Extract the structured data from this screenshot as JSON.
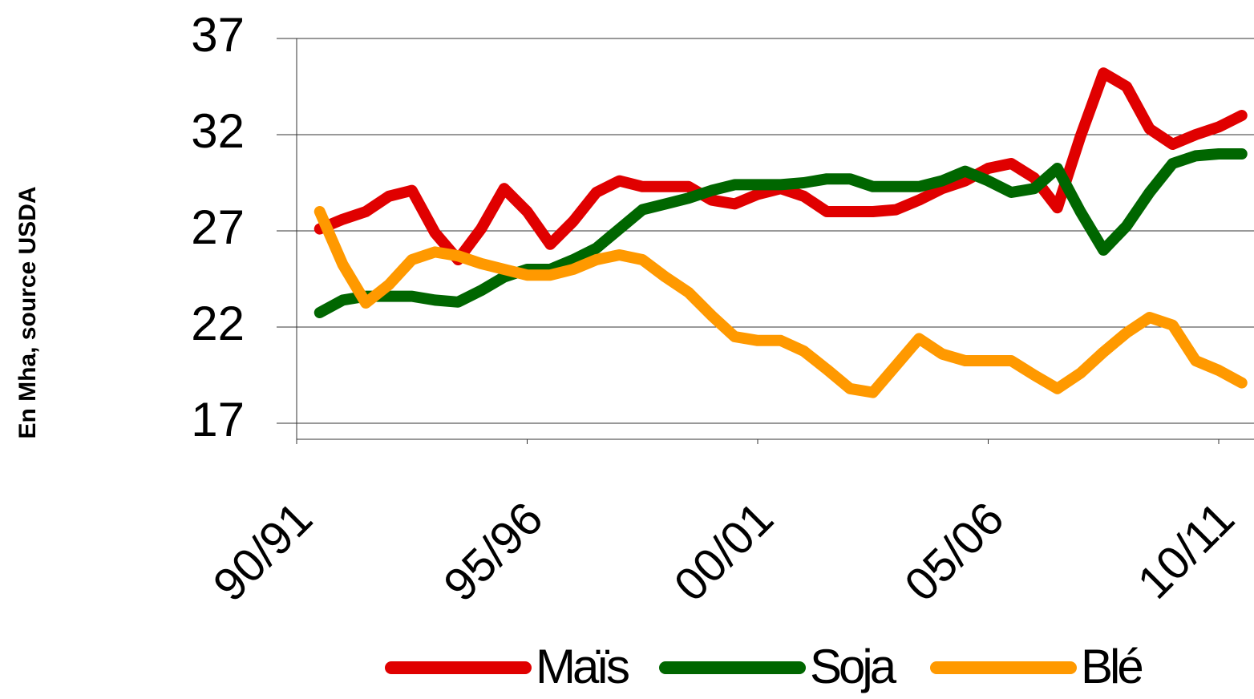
{
  "chart_data": {
    "type": "line",
    "y_label": "En Mha, source USDA",
    "categories": [
      "90/91",
      null,
      null,
      null,
      null,
      null,
      null,
      null,
      null,
      null,
      "95/96",
      null,
      null,
      null,
      null,
      null,
      null,
      null,
      null,
      null,
      "00/01",
      null,
      null,
      null,
      null,
      null,
      null,
      null,
      null,
      null,
      "05/06",
      null,
      null,
      null,
      null,
      null,
      null,
      null,
      null,
      null,
      "10/11",
      null
    ],
    "series": [
      {
        "name": "Maïs",
        "color": "#e00000",
        "values": [
          null,
          27.1,
          27.6,
          28.0,
          28.8,
          29.1,
          26.9,
          25.5,
          27.1,
          29.2,
          28.0,
          26.3,
          27.5,
          29.0,
          29.6,
          29.3,
          29.3,
          29.3,
          28.6,
          28.4,
          28.9,
          29.2,
          28.8,
          28.0,
          28.0,
          28.0,
          28.1,
          28.6,
          29.2,
          29.6,
          30.25,
          30.5,
          29.75,
          28.2,
          31.9,
          35.2,
          34.5,
          32.3,
          31.5,
          32.0,
          32.4,
          33.0
        ]
      },
      {
        "name": "Soja",
        "color": "#006600",
        "values": [
          null,
          22.75,
          23.4,
          23.6,
          23.6,
          23.6,
          23.4,
          23.3,
          23.9,
          24.6,
          25.0,
          25.0,
          25.5,
          26.1,
          27.1,
          28.1,
          28.4,
          28.7,
          29.1,
          29.4,
          29.4,
          29.4,
          29.5,
          29.7,
          29.7,
          29.3,
          29.3,
          29.3,
          29.6,
          30.1,
          29.6,
          29.0,
          29.2,
          30.25,
          28.0,
          26.0,
          27.25,
          29.0,
          30.5,
          30.9,
          31.0,
          31.0
        ]
      },
      {
        "name": "Blé",
        "color": "#ff9900",
        "values": [
          null,
          28.0,
          25.25,
          23.25,
          24.2,
          25.5,
          25.9,
          25.7,
          25.3,
          25.0,
          24.7,
          24.7,
          25.0,
          25.5,
          25.75,
          25.5,
          24.6,
          23.8,
          22.6,
          21.5,
          21.3,
          21.3,
          20.75,
          19.8,
          18.8,
          18.6,
          20.0,
          21.4,
          20.6,
          20.25,
          20.25,
          20.25,
          19.5,
          18.8,
          19.6,
          20.7,
          21.7,
          22.5,
          22.1,
          20.25,
          19.75,
          19.1
        ]
      }
    ],
    "ylim": [
      17,
      37
    ],
    "yticks": [
      17,
      22,
      27,
      32,
      37
    ],
    "grid": true,
    "legend": "bottom"
  }
}
